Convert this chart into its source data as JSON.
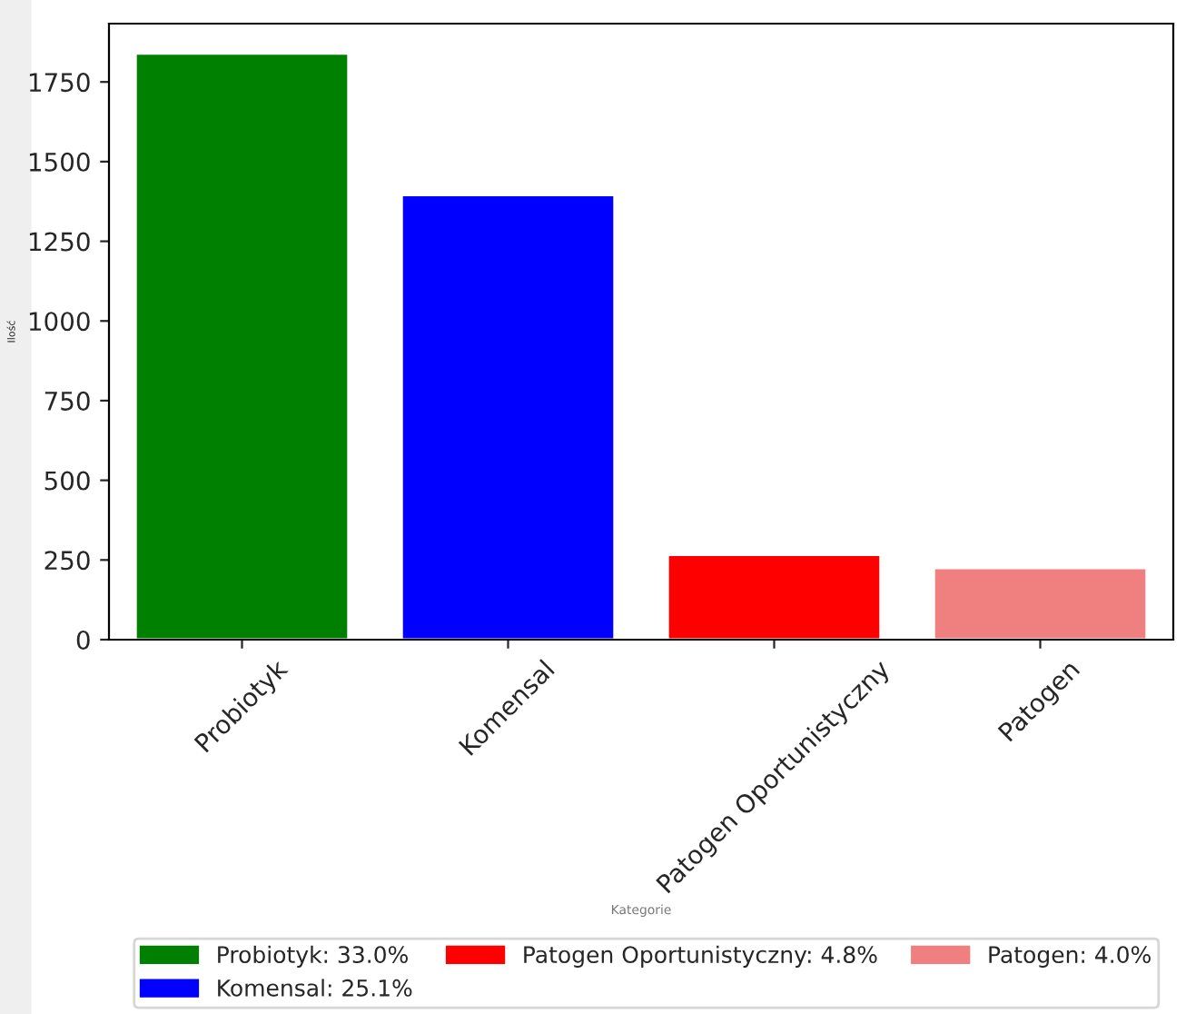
{
  "chart_data": {
    "type": "bar",
    "xlabel": "Kategorie",
    "ylabel": "Ilość",
    "categories": [
      "Probiotyk",
      "Komensal",
      "Patogen Oportunistyczny",
      "Patogen"
    ],
    "series": [
      {
        "name": "Probiotyk: 33.0%",
        "color": "#008000",
        "values": [
          1839,
          null,
          null,
          null
        ]
      },
      {
        "name": "Komensal: 25.1%",
        "color": "#0000ff",
        "values": [
          null,
          1395,
          null,
          null
        ]
      },
      {
        "name": "Patogen Oportunistyczny: 4.8%",
        "color": "#ff0000",
        "values": [
          null,
          null,
          266,
          null
        ]
      },
      {
        "name": "Patogen: 4.0%",
        "color": "#f08080",
        "values": [
          null,
          null,
          null,
          225
        ]
      }
    ],
    "ylim": [
      0,
      1933
    ],
    "yticks": [
      0,
      250,
      500,
      750,
      1000,
      1250,
      1500,
      1750
    ],
    "grid": false,
    "legend": "bottom"
  }
}
